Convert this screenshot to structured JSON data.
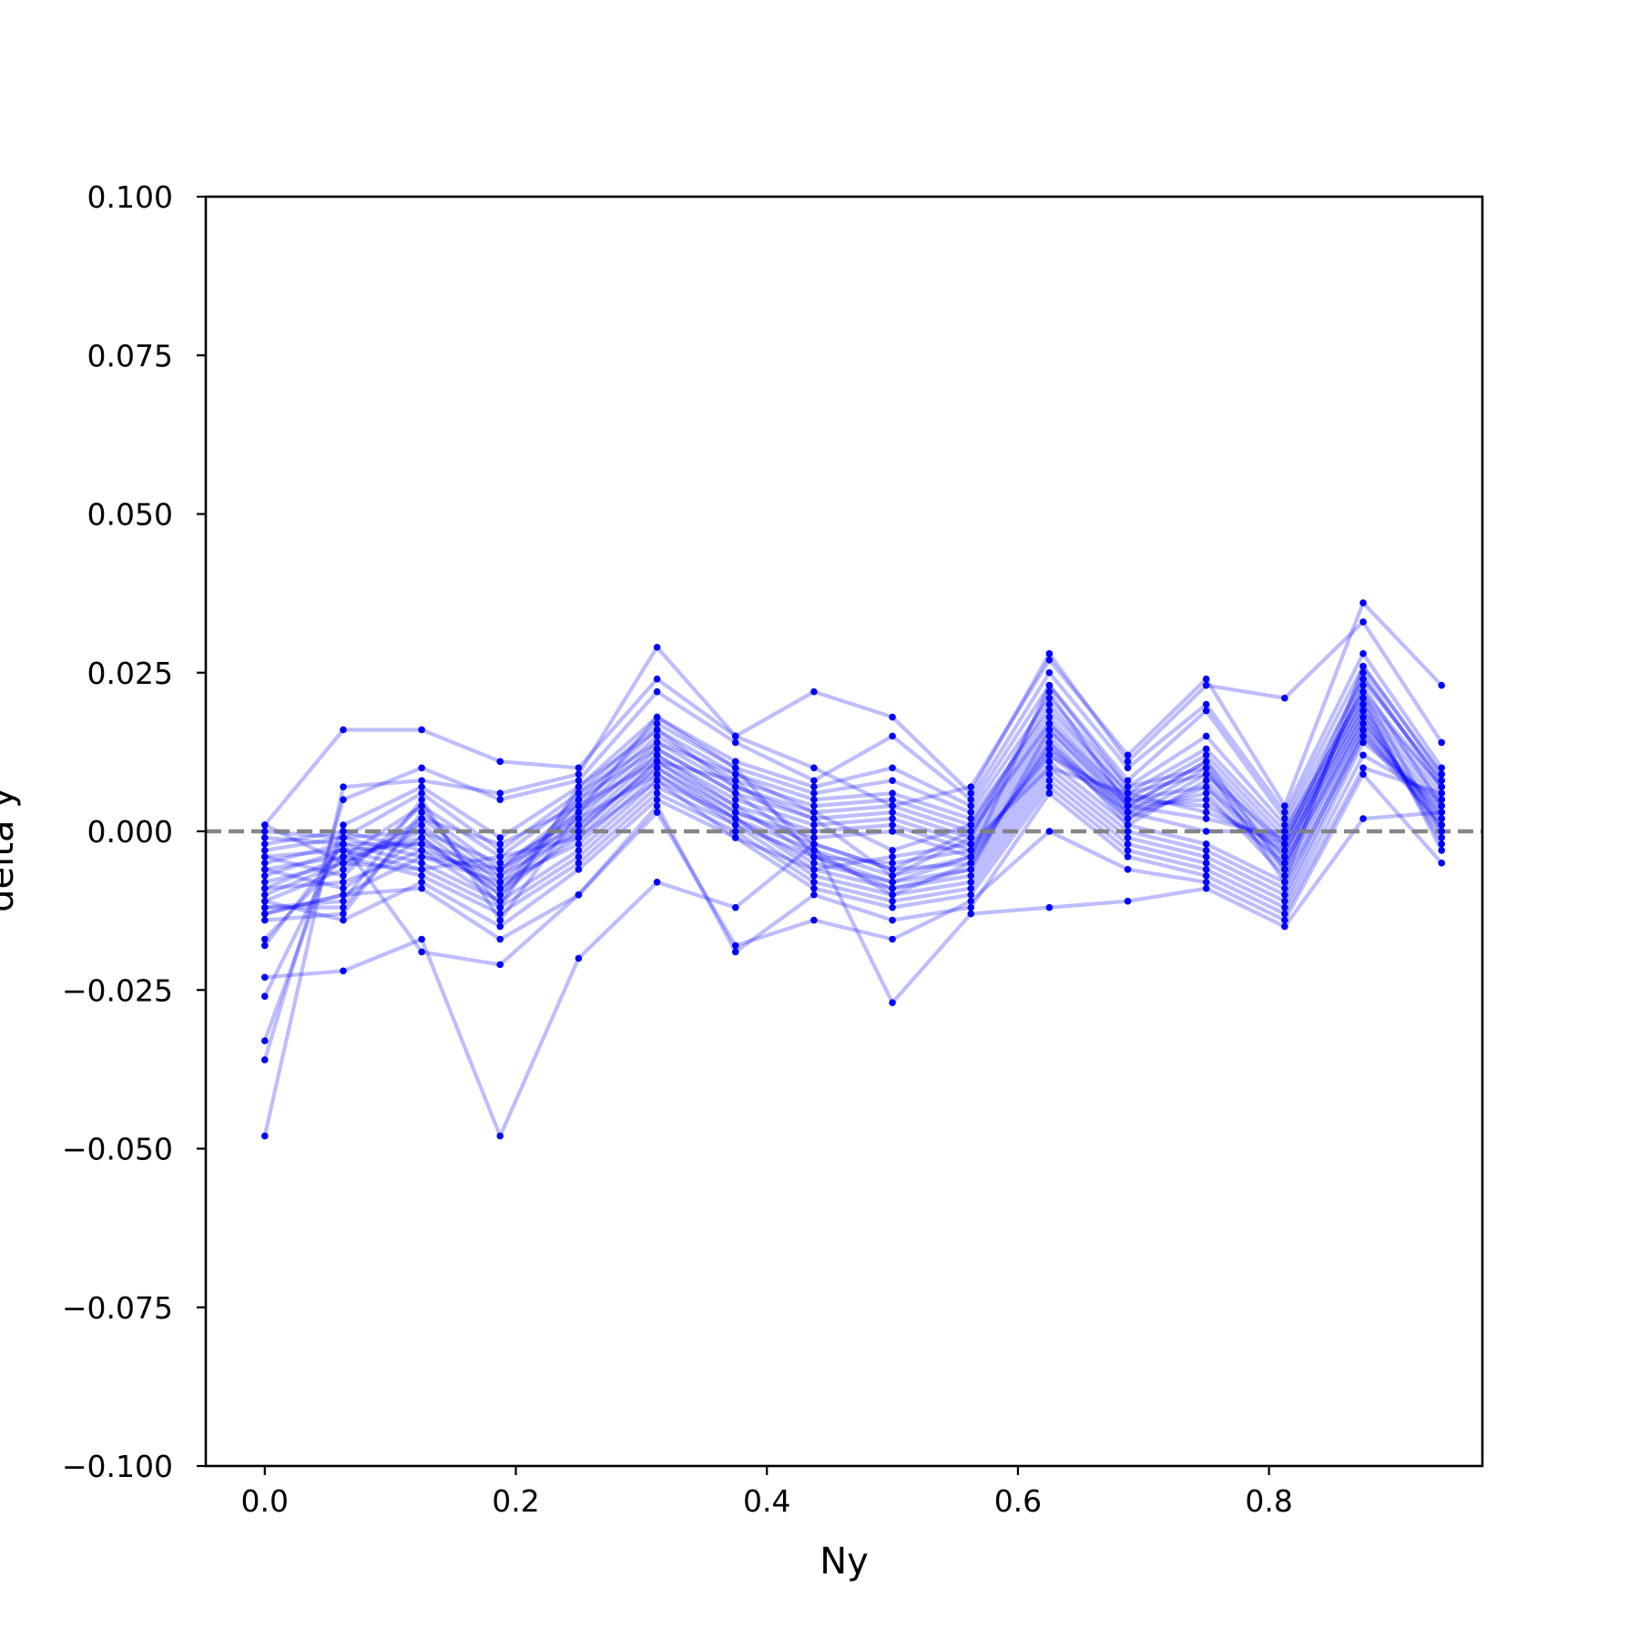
{
  "chart_data": {
    "type": "line",
    "title": "",
    "xlabel": "Ny",
    "ylabel": "delta y",
    "xlim": [
      -0.047,
      0.97
    ],
    "ylim": [
      -0.1,
      0.1
    ],
    "xticks": [
      0.0,
      0.2,
      0.4,
      0.6,
      0.8
    ],
    "xtick_labels": [
      "0.0",
      "0.2",
      "0.4",
      "0.6",
      "0.8"
    ],
    "yticks": [
      0.1,
      0.075,
      0.05,
      0.025,
      0.0,
      -0.025,
      -0.05,
      -0.075,
      -0.1
    ],
    "ytick_labels": [
      "0.100",
      "0.075",
      "0.050",
      "0.025",
      "0.000",
      "−0.025",
      "−0.050",
      "−0.075",
      "−0.100"
    ],
    "grid": false,
    "reference_line": {
      "y": 0.0,
      "style": "dashed",
      "color": "#808080"
    },
    "line_color": "#0000ff",
    "x": [
      0.0,
      0.0625,
      0.125,
      0.1875,
      0.25,
      0.3125,
      0.375,
      0.4375,
      0.5,
      0.5625,
      0.625,
      0.6875,
      0.75,
      0.8125,
      0.875,
      0.9375
    ],
    "series": [
      {
        "values": [
          0.001,
          0.016,
          0.016,
          0.011,
          0.01,
          0.024,
          0.015,
          0.01,
          0.004,
          0.007,
          0.027,
          0.012,
          0.024,
          0.004,
          0.036,
          0.023
        ]
      },
      {
        "values": [
          -0.048,
          0.007,
          0.008,
          0.006,
          0.009,
          0.029,
          0.015,
          0.022,
          0.018,
          0.006,
          0.028,
          0.011,
          0.023,
          0.021,
          0.033,
          0.014
        ]
      },
      {
        "values": [
          -0.036,
          0.005,
          0.01,
          0.005,
          0.008,
          0.022,
          0.014,
          0.008,
          0.015,
          0.005,
          0.025,
          0.01,
          0.02,
          0.003,
          0.028,
          0.01
        ]
      },
      {
        "values": [
          -0.033,
          0.001,
          0.007,
          -0.001,
          0.007,
          0.018,
          0.011,
          0.007,
          0.01,
          0.004,
          0.023,
          0.008,
          0.019,
          0.002,
          0.026,
          0.009
        ]
      },
      {
        "values": [
          -0.026,
          -0.001,
          0.006,
          -0.003,
          0.006,
          0.017,
          0.01,
          0.006,
          0.008,
          0.003,
          0.021,
          0.007,
          0.015,
          0.001,
          0.024,
          0.008
        ]
      },
      {
        "values": [
          -0.023,
          -0.022,
          -0.017,
          -0.048,
          -0.02,
          -0.008,
          -0.012,
          -0.002,
          -0.027,
          -0.013,
          -0.012,
          -0.011,
          -0.009,
          -0.015,
          0.002,
          0.003
        ]
      },
      {
        "values": [
          -0.018,
          -0.002,
          -0.019,
          -0.021,
          -0.01,
          0.003,
          -0.018,
          -0.014,
          -0.017,
          -0.011,
          0.0,
          -0.006,
          -0.008,
          -0.014,
          0.009,
          -0.005
        ]
      },
      {
        "values": [
          -0.017,
          -0.004,
          0.004,
          -0.004,
          0.005,
          0.016,
          0.009,
          0.005,
          0.006,
          0.002,
          0.019,
          0.006,
          0.013,
          0.0,
          0.022,
          0.007
        ]
      },
      {
        "values": [
          -0.014,
          -0.013,
          0.003,
          -0.006,
          0.004,
          0.015,
          0.008,
          0.004,
          0.005,
          0.001,
          0.018,
          0.005,
          0.012,
          -0.001,
          0.021,
          0.007
        ]
      },
      {
        "values": [
          -0.013,
          -0.01,
          -0.009,
          -0.017,
          -0.01,
          0.004,
          -0.019,
          -0.01,
          -0.014,
          -0.012,
          0.006,
          -0.004,
          -0.007,
          -0.013,
          0.01,
          0.006
        ]
      },
      {
        "values": [
          -0.012,
          -0.012,
          0.002,
          -0.007,
          0.003,
          0.014,
          0.007,
          0.003,
          0.004,
          0.0,
          0.017,
          0.004,
          0.011,
          -0.002,
          0.02,
          0.006
        ]
      },
      {
        "values": [
          -0.011,
          -0.014,
          -0.008,
          -0.015,
          -0.006,
          0.005,
          -0.001,
          -0.009,
          -0.012,
          -0.01,
          0.007,
          -0.003,
          -0.006,
          -0.012,
          0.012,
          0.005
        ]
      },
      {
        "values": [
          -0.01,
          -0.005,
          0.001,
          -0.008,
          0.002,
          0.013,
          0.006,
          0.002,
          0.003,
          -0.001,
          0.016,
          0.003,
          0.01,
          -0.003,
          0.019,
          0.005
        ]
      },
      {
        "values": [
          -0.009,
          -0.004,
          -0.007,
          -0.013,
          -0.005,
          0.006,
          0.0,
          -0.008,
          -0.011,
          -0.009,
          0.008,
          -0.002,
          -0.005,
          -0.011,
          0.014,
          0.004
        ]
      },
      {
        "values": [
          -0.008,
          -0.005,
          0.0,
          -0.009,
          0.001,
          0.012,
          0.005,
          0.001,
          0.002,
          -0.002,
          0.015,
          0.002,
          0.009,
          -0.004,
          0.018,
          0.004
        ]
      },
      {
        "values": [
          -0.007,
          -0.003,
          -0.006,
          -0.012,
          -0.004,
          0.007,
          0.001,
          -0.007,
          -0.01,
          -0.008,
          0.009,
          -0.001,
          -0.004,
          -0.01,
          0.015,
          0.003
        ]
      },
      {
        "values": [
          -0.006,
          -0.004,
          -0.001,
          -0.01,
          0.0,
          0.011,
          0.004,
          0.0,
          0.001,
          -0.003,
          0.014,
          0.001,
          0.008,
          -0.005,
          0.017,
          0.003
        ]
      },
      {
        "values": [
          -0.005,
          -0.002,
          -0.005,
          -0.011,
          -0.003,
          0.008,
          0.002,
          -0.006,
          -0.009,
          -0.007,
          0.01,
          0.0,
          -0.003,
          -0.009,
          0.016,
          0.002
        ]
      },
      {
        "values": [
          -0.004,
          -0.003,
          -0.002,
          -0.009,
          -0.001,
          0.01,
          0.003,
          -0.001,
          0.0,
          -0.004,
          0.013,
          0.002,
          0.007,
          -0.006,
          0.017,
          0.002
        ]
      },
      {
        "values": [
          -0.003,
          -0.001,
          -0.004,
          -0.008,
          -0.002,
          0.009,
          0.002,
          -0.005,
          -0.008,
          -0.006,
          0.011,
          0.001,
          -0.002,
          -0.008,
          0.015,
          0.001
        ]
      },
      {
        "values": [
          -0.002,
          0.0,
          -0.003,
          -0.007,
          0.0,
          0.011,
          0.003,
          -0.002,
          -0.006,
          -0.005,
          0.012,
          0.003,
          0.006,
          -0.007,
          0.016,
          0.001
        ]
      },
      {
        "values": [
          -0.001,
          -0.002,
          -0.002,
          -0.006,
          0.001,
          0.01,
          0.002,
          -0.003,
          -0.007,
          -0.004,
          0.013,
          0.004,
          0.005,
          -0.005,
          0.018,
          0.0
        ]
      },
      {
        "values": [
          0.0,
          -0.001,
          0.0,
          -0.005,
          0.002,
          0.009,
          0.001,
          -0.004,
          -0.005,
          -0.003,
          0.012,
          0.005,
          0.004,
          -0.003,
          0.019,
          -0.001
        ]
      },
      {
        "values": [
          0.001,
          -0.005,
          -0.006,
          -0.004,
          -0.001,
          0.008,
          -0.001,
          -0.006,
          -0.004,
          -0.002,
          0.01,
          0.006,
          0.003,
          -0.002,
          0.02,
          -0.002
        ]
      },
      {
        "values": [
          -0.012,
          -0.011,
          0.005,
          -0.014,
          0.003,
          0.012,
          0.004,
          -0.004,
          -0.009,
          -0.006,
          0.016,
          0.004,
          0.002,
          -0.001,
          0.021,
          -0.003
        ]
      },
      {
        "values": [
          -0.009,
          -0.008,
          -0.003,
          -0.011,
          0.005,
          0.013,
          0.006,
          -0.003,
          -0.01,
          -0.005,
          0.014,
          0.003,
          0.0,
          0.0,
          0.022,
          0.0
        ]
      },
      {
        "values": [
          -0.011,
          -0.006,
          0.002,
          -0.002,
          0.004,
          0.011,
          0.008,
          -0.002,
          -0.006,
          0.0,
          0.017,
          0.005,
          0.007,
          -0.004,
          0.023,
          0.004
        ]
      },
      {
        "values": [
          -0.006,
          -0.009,
          -0.001,
          -0.01,
          0.006,
          0.014,
          0.009,
          0.003,
          -0.003,
          0.001,
          0.02,
          0.006,
          0.009,
          -0.002,
          0.025,
          0.007
        ]
      },
      {
        "values": [
          -0.004,
          -0.007,
          0.004,
          -0.012,
          0.007,
          0.016,
          0.007,
          0.002,
          -0.007,
          -0.001,
          0.022,
          0.004,
          0.011,
          -0.006,
          0.024,
          0.008
        ]
      },
      {
        "values": [
          -0.013,
          -0.01,
          -0.004,
          -0.006,
          0.003,
          0.018,
          0.01,
          -0.004,
          -0.008,
          -0.004,
          0.023,
          0.007,
          0.01,
          -0.008,
          0.026,
          0.009
        ]
      }
    ]
  }
}
